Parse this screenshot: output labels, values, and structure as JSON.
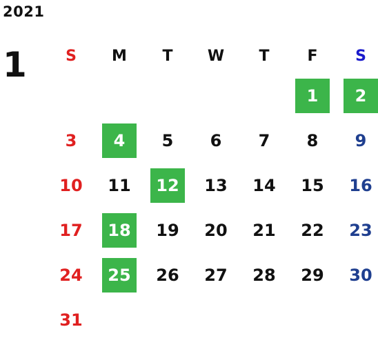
{
  "calendar": {
    "year": "2021",
    "month": "1",
    "weekdays": [
      "S",
      "M",
      "T",
      "W",
      "T",
      "F",
      "S"
    ],
    "colors": {
      "sunday": "#e02020",
      "saturday_header": "#1a1acc",
      "saturday": "#1f3f8f",
      "weekday": "#111111",
      "highlight_bg": "#3cb54a",
      "highlight_text": "#ffffff"
    },
    "weeks": [
      [
        "",
        "",
        "",
        "",
        "",
        "1",
        "2"
      ],
      [
        "3",
        "4",
        "5",
        "6",
        "7",
        "8",
        "9"
      ],
      [
        "10",
        "11",
        "12",
        "13",
        "14",
        "15",
        "16"
      ],
      [
        "17",
        "18",
        "19",
        "20",
        "21",
        "22",
        "23"
      ],
      [
        "24",
        "25",
        "26",
        "27",
        "28",
        "29",
        "30"
      ],
      [
        "31",
        "",
        "",
        "",
        "",
        "",
        ""
      ]
    ],
    "highlighted_days": [
      "1",
      "2",
      "4",
      "12",
      "18",
      "25"
    ]
  }
}
